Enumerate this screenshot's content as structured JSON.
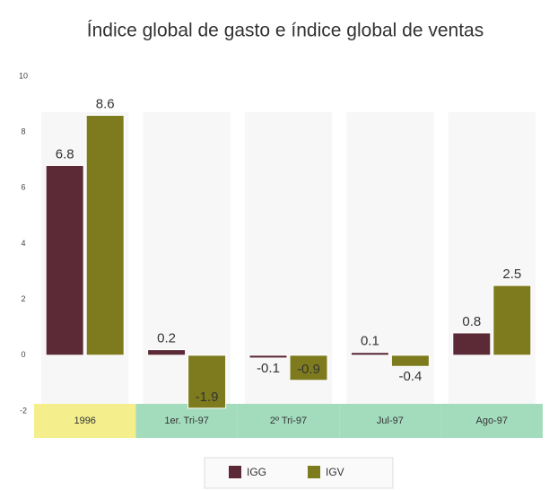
{
  "chart_data": {
    "type": "bar",
    "title": "Índice global de gasto e índice global de ventas",
    "categories": [
      "1996",
      "1er. Tri-97",
      "2º Tri-97",
      "Jul-97",
      "Ago-97"
    ],
    "category_colors": [
      "#f4ef8c",
      "#a3dcbd",
      "#a3dcbd",
      "#a3dcbd",
      "#a3dcbd"
    ],
    "series": [
      {
        "name": "IGG",
        "color": "#5b2a36",
        "values": [
          6.8,
          0.2,
          -0.1,
          0.1,
          0.8
        ]
      },
      {
        "name": "IGV",
        "color": "#7e7b1e",
        "values": [
          8.6,
          -1.9,
          -0.9,
          -0.4,
          2.5
        ]
      }
    ],
    "ylim": [
      -2,
      10
    ],
    "yticks": [
      -2,
      0,
      2,
      4,
      6,
      8,
      10
    ],
    "grid": false
  }
}
